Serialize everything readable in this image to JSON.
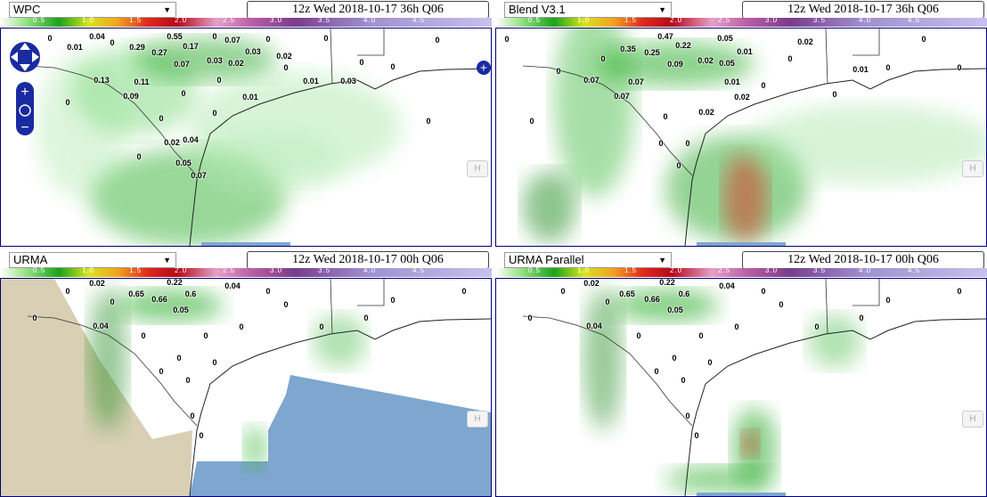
{
  "colorbar": {
    "labels": [
      "0.5",
      "1.0",
      "1.5",
      "2.0",
      "2.5",
      "3.0",
      "3.5",
      "4.0",
      "4.5"
    ]
  },
  "hide_button": "H",
  "panels": [
    {
      "model": "WPC",
      "time": "12z Wed 2018-10-17 36h Q06",
      "stations": [
        "0.04",
        "0.55",
        "0.01",
        "0.29",
        "0.17",
        "0.27",
        "0.07",
        "0.03",
        "0.02",
        "0.07",
        "0.03",
        "0.02",
        "0.13",
        "0.11",
        "0.09",
        "0.01",
        "0.03",
        "0.01",
        "0.02",
        "0.04",
        "0.05",
        "0.07",
        "0",
        "0",
        "0",
        "0",
        "0",
        "0",
        "0",
        "0",
        "0",
        "0",
        "0",
        "0",
        "0",
        "0",
        "0",
        "0"
      ]
    },
    {
      "model": "Blend V3.1",
      "time": "12z Wed 2018-10-17 36h Q06",
      "stations": [
        "0.47",
        "0.05",
        "0.35",
        "0.22",
        "0.01",
        "0.02",
        "0.25",
        "0.02",
        "0.05",
        "0.09",
        "0.07",
        "0.07",
        "0.01",
        "0.07",
        "0.02",
        "0.01",
        "0.02",
        "0",
        "0",
        "0",
        "0",
        "0",
        "0",
        "0",
        "0",
        "0",
        "0",
        "0",
        "0",
        "0",
        "0"
      ]
    },
    {
      "model": "URMA",
      "time": "12z Wed 2018-10-17 00h Q06",
      "stations": [
        "0.02",
        "0.22",
        "0.65",
        "0.66",
        "0.6",
        "0.04",
        "0.05",
        "0.04",
        "0",
        "0",
        "0",
        "0",
        "0",
        "0",
        "0",
        "0",
        "0",
        "0",
        "0",
        "0",
        "0",
        "0",
        "0",
        "0",
        "0",
        "0"
      ]
    },
    {
      "model": "URMA Parallel",
      "time": "12z Wed 2018-10-17 00h Q06",
      "stations": [
        "0.02",
        "0.22",
        "0.65",
        "0.66",
        "0.6",
        "0.04",
        "0.05",
        "0.04",
        "0",
        "0",
        "0",
        "0",
        "0",
        "0",
        "0",
        "0",
        "0",
        "0",
        "0",
        "0",
        "0",
        "0",
        "0",
        "0",
        "0",
        "0"
      ]
    }
  ]
}
